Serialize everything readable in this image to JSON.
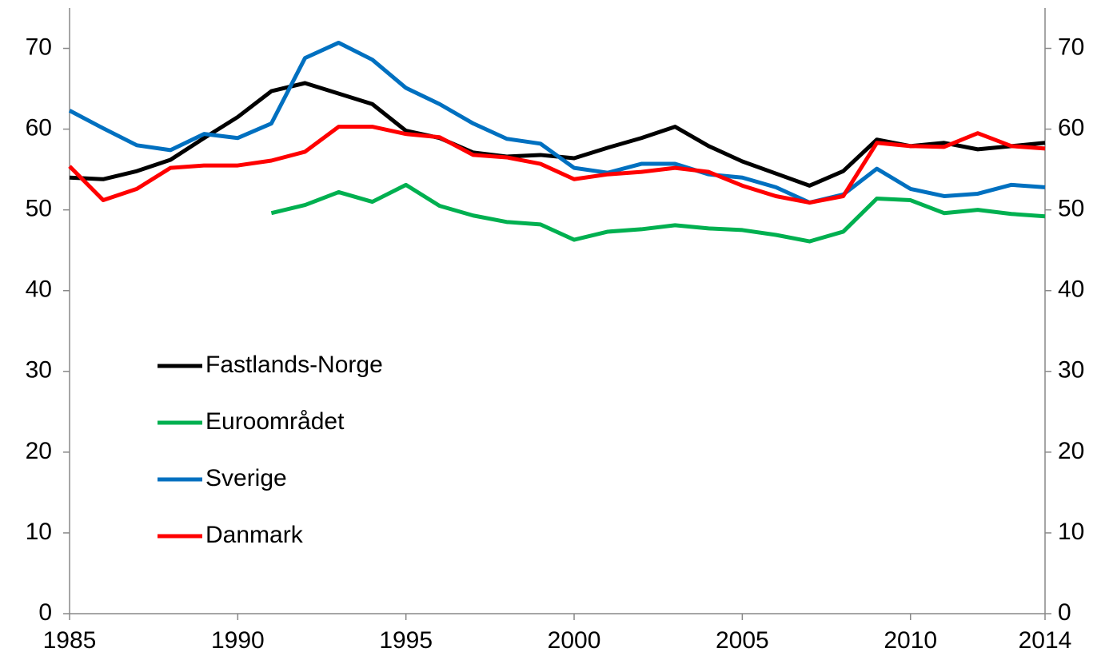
{
  "chart_data": {
    "type": "line",
    "x": [
      1985,
      1986,
      1987,
      1988,
      1989,
      1990,
      1991,
      1992,
      1993,
      1994,
      1995,
      1996,
      1997,
      1998,
      1999,
      2000,
      2001,
      2002,
      2003,
      2004,
      2005,
      2006,
      2007,
      2008,
      2009,
      2010,
      2011,
      2012,
      2013,
      2014
    ],
    "series": [
      {
        "name": "Fastlands-Norge",
        "color": "#000000",
        "values": [
          54.0,
          53.8,
          54.8,
          56.2,
          58.9,
          61.5,
          64.7,
          65.7,
          64.4,
          63.1,
          59.8,
          58.9,
          57.1,
          56.6,
          56.8,
          56.4,
          57.7,
          58.9,
          60.3,
          57.9,
          56.0,
          54.5,
          53.0,
          54.8,
          58.7,
          57.9,
          58.3,
          57.5,
          57.9,
          58.3
        ]
      },
      {
        "name": "Euroområdet",
        "color": "#00b050",
        "values": [
          null,
          null,
          null,
          null,
          null,
          null,
          49.6,
          50.6,
          52.2,
          51.0,
          53.1,
          50.5,
          49.3,
          48.5,
          48.2,
          46.3,
          47.3,
          47.6,
          48.1,
          47.7,
          47.5,
          46.9,
          46.1,
          47.3,
          51.4,
          51.2,
          49.6,
          50.0,
          49.5,
          49.2
        ]
      },
      {
        "name": "Sverige",
        "color": "#0070c0",
        "values": [
          62.3,
          60.1,
          58.0,
          57.4,
          59.4,
          58.9,
          60.7,
          68.8,
          70.7,
          68.6,
          65.1,
          63.1,
          60.7,
          58.8,
          58.2,
          55.2,
          54.6,
          55.7,
          55.7,
          54.4,
          54.0,
          52.8,
          50.9,
          51.9,
          55.1,
          52.6,
          51.7,
          52.0,
          53.1,
          52.8
        ]
      },
      {
        "name": "Danmark",
        "color": "#ff0000",
        "values": [
          55.4,
          51.2,
          52.6,
          55.2,
          55.5,
          55.5,
          56.1,
          57.2,
          60.3,
          60.3,
          59.4,
          59.0,
          56.8,
          56.5,
          55.7,
          53.8,
          54.4,
          54.7,
          55.2,
          54.7,
          53.0,
          51.7,
          50.9,
          51.7,
          58.3,
          57.9,
          57.8,
          59.5,
          57.9,
          57.6
        ]
      }
    ],
    "xlim": [
      1985,
      2014
    ],
    "xticks": [
      1985,
      1990,
      1995,
      2000,
      2005,
      2010,
      2014
    ],
    "ylim": [
      0,
      75
    ],
    "yticks": [
      0,
      10,
      20,
      30,
      40,
      50,
      60,
      70
    ],
    "y2lim": [
      0,
      75
    ],
    "y2ticks": [
      0,
      10,
      20,
      30,
      40,
      50,
      60,
      70
    ],
    "legend": "left"
  }
}
